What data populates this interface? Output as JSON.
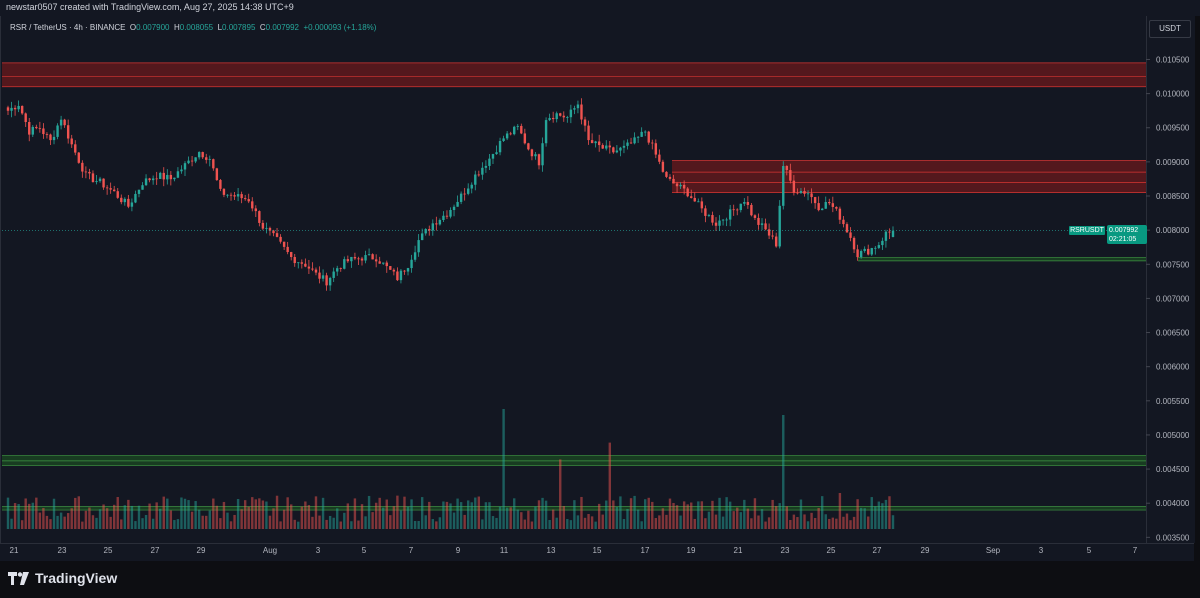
{
  "header": {
    "caption": "newstar0507 created with TradingView.com, Aug 27, 2025 14:38 UTC+9"
  },
  "legend": {
    "symbol": "RSR / TetherUS · 4h · BINANCE",
    "o_label": "O",
    "o_value": "0.007900",
    "h_label": "H",
    "h_value": "0.008055",
    "l_label": "L",
    "l_value": "0.007895",
    "c_label": "C",
    "c_value": "0.007992",
    "change": "+0.000093 (+1.18%)"
  },
  "currency_button": "USDT",
  "last_price": {
    "symbol": "RSRUSDT",
    "price": "0.007992",
    "countdown": "02:21:05"
  },
  "logo_text": "TradingView",
  "colors": {
    "up": "#26a69a",
    "down": "#ef5350",
    "resistance": "#b71c1c",
    "support": "#1b5e20",
    "background": "#131722"
  },
  "chart_data": {
    "type": "candlestick",
    "symbol": "RSRUSDT",
    "interval": "4h",
    "ylim": [
      0.0033,
      0.0108
    ],
    "y_ticks": [
      "0.010500",
      "0.010000",
      "0.009500",
      "0.009000",
      "0.008500",
      "0.008000",
      "0.007500",
      "0.007000",
      "0.006500",
      "0.006000",
      "0.005500",
      "0.005000",
      "0.004500",
      "0.004000",
      "0.003500"
    ],
    "x_ticks": [
      "21",
      "23",
      "25",
      "27",
      "29",
      "Aug",
      "3",
      "5",
      "7",
      "9",
      "11",
      "13",
      "15",
      "17",
      "19",
      "21",
      "23",
      "25",
      "27",
      "29",
      "Sep",
      "3",
      "5",
      "7"
    ],
    "close_path": [
      [
        0,
        0.00975
      ],
      [
        3,
        0.00985
      ],
      [
        6,
        0.00945
      ],
      [
        9,
        0.0095
      ],
      [
        12,
        0.0093
      ],
      [
        15,
        0.00965
      ],
      [
        18,
        0.00925
      ],
      [
        22,
        0.0088
      ],
      [
        26,
        0.0087
      ],
      [
        30,
        0.00855
      ],
      [
        34,
        0.00835
      ],
      [
        38,
        0.0087
      ],
      [
        42,
        0.0088
      ],
      [
        46,
        0.00875
      ],
      [
        50,
        0.00895
      ],
      [
        54,
        0.00915
      ],
      [
        57,
        0.00905
      ],
      [
        60,
        0.00855
      ],
      [
        64,
        0.0085
      ],
      [
        68,
        0.00845
      ],
      [
        72,
        0.00805
      ],
      [
        76,
        0.00785
      ],
      [
        80,
        0.0076
      ],
      [
        84,
        0.0075
      ],
      [
        87,
        0.00735
      ],
      [
        90,
        0.00725
      ],
      [
        93,
        0.00745
      ],
      [
        96,
        0.00755
      ],
      [
        100,
        0.0076
      ],
      [
        104,
        0.0076
      ],
      [
        107,
        0.00745
      ],
      [
        110,
        0.0073
      ],
      [
        113,
        0.0075
      ],
      [
        116,
        0.00785
      ],
      [
        120,
        0.0081
      ],
      [
        124,
        0.00825
      ],
      [
        128,
        0.0085
      ],
      [
        132,
        0.0088
      ],
      [
        136,
        0.00905
      ],
      [
        140,
        0.00935
      ],
      [
        144,
        0.0095
      ],
      [
        147,
        0.0092
      ],
      [
        150,
        0.009
      ],
      [
        152,
        0.00965
      ],
      [
        155,
        0.0097
      ],
      [
        158,
        0.00965
      ],
      [
        161,
        0.00985
      ],
      [
        164,
        0.0093
      ],
      [
        168,
        0.0092
      ],
      [
        171,
        0.00915
      ],
      [
        174,
        0.0092
      ],
      [
        177,
        0.0093
      ],
      [
        180,
        0.00945
      ],
      [
        183,
        0.0091
      ],
      [
        186,
        0.00875
      ],
      [
        189,
        0.00865
      ],
      [
        192,
        0.00855
      ],
      [
        196,
        0.0083
      ],
      [
        200,
        0.0081
      ],
      [
        204,
        0.00825
      ],
      [
        208,
        0.00845
      ],
      [
        211,
        0.00815
      ],
      [
        214,
        0.008
      ],
      [
        217,
        0.0078
      ],
      [
        219,
        0.00895
      ],
      [
        222,
        0.0086
      ],
      [
        226,
        0.00855
      ],
      [
        229,
        0.00835
      ],
      [
        232,
        0.0084
      ],
      [
        235,
        0.0082
      ],
      [
        238,
        0.0079
      ],
      [
        240,
        0.00765
      ],
      [
        243,
        0.0077
      ],
      [
        246,
        0.0078
      ],
      [
        248,
        0.00795
      ],
      [
        250,
        0.00799
      ]
    ],
    "last": {
      "open": 0.0079,
      "high": 0.008055,
      "low": 0.007895,
      "close": 0.007992
    },
    "zones": [
      {
        "kind": "resistance",
        "from": 0.0101,
        "to": 0.01045,
        "lines": [
          0.0101,
          0.01025,
          0.01045
        ]
      },
      {
        "kind": "resistance",
        "from": 0.00855,
        "to": 0.00902,
        "lines": [
          0.00855,
          0.0087,
          0.00885,
          0.00902
        ]
      },
      {
        "kind": "support",
        "from": 0.00755,
        "to": 0.0076,
        "lines": [
          0.00755,
          0.0076
        ]
      },
      {
        "kind": "support",
        "from": 0.00455,
        "to": 0.0047,
        "lines": [
          0.00455,
          0.00462,
          0.0047
        ]
      },
      {
        "kind": "support",
        "from": 0.0039,
        "to": 0.00395,
        "lines": [
          0.0039,
          0.00395
        ]
      }
    ],
    "volume": {
      "spikes": [
        {
          "bar": 140,
          "level": 1.0
        },
        {
          "bar": 156,
          "level": 0.58
        },
        {
          "bar": 170,
          "level": 0.72
        },
        {
          "bar": 219,
          "level": 0.95
        },
        {
          "bar": 235,
          "level": 0.3
        }
      ]
    }
  }
}
